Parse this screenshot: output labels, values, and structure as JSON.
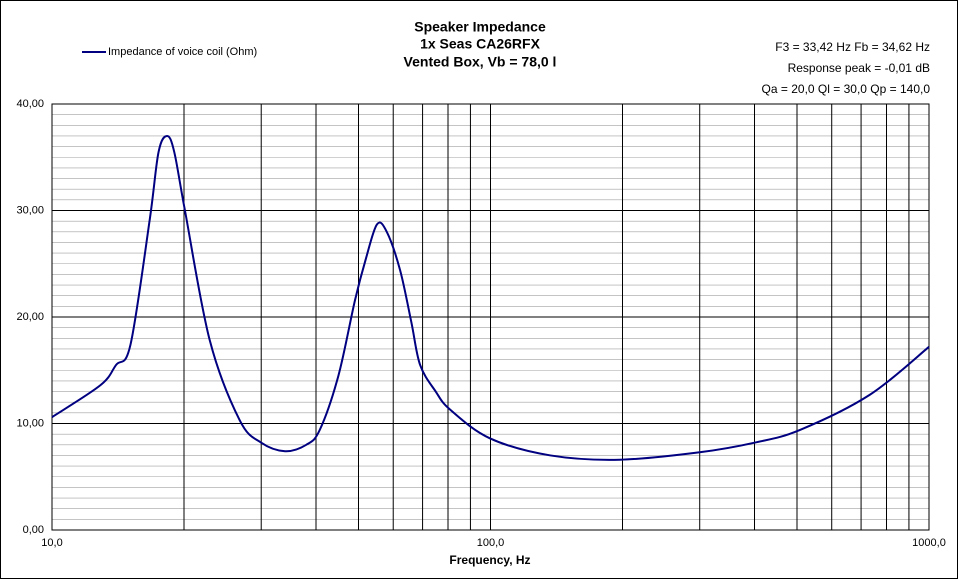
{
  "chart_data": {
    "type": "line",
    "title": [
      "Speaker Impedance",
      "1x Seas CA26RFX",
      "Vented Box, Vb = 78,0 l"
    ],
    "annotations": [
      "F3 = 33,42  Hz   Fb = 34,62  Hz",
      "Response peak = -0,01  dB",
      "Qa = 20,0   Ql = 30,0   Qp = 140,0"
    ],
    "x_label": "Frequency, Hz",
    "x_scale": "log",
    "xlim": [
      10,
      1000
    ],
    "xticks": [
      {
        "value": 10,
        "label": "10,0"
      },
      {
        "value": 100,
        "label": "100,0"
      },
      {
        "value": 1000,
        "label": "1000,0"
      }
    ],
    "x_minor_ticks": [
      20,
      30,
      40,
      50,
      60,
      70,
      80,
      90,
      200,
      300,
      400,
      500,
      600,
      700,
      800,
      900
    ],
    "ylim": [
      0,
      40
    ],
    "yticks": [
      {
        "value": 0,
        "label": "0,00"
      },
      {
        "value": 10,
        "label": "10,00"
      },
      {
        "value": 20,
        "label": "20,00"
      },
      {
        "value": 30,
        "label": "30,00"
      },
      {
        "value": 40,
        "label": "40,00"
      }
    ],
    "y_minor_ticks": [
      1,
      2,
      3,
      4,
      5,
      6,
      7,
      8,
      9,
      11,
      12,
      13,
      14,
      15,
      16,
      17,
      18,
      19,
      21,
      22,
      23,
      24,
      25,
      26,
      27,
      28,
      29,
      31,
      32,
      33,
      34,
      35,
      36,
      37,
      38,
      39
    ],
    "grid": true,
    "legend": "top-left",
    "x": [
      10,
      12.9,
      14,
      15.1,
      16.7,
      17.5,
      18.3,
      19,
      20.1,
      22.9,
      26.8,
      30,
      34,
      38,
      40.8,
      45,
      49.1,
      52,
      55.1,
      58,
      62.2,
      66,
      69.1,
      75,
      80.9,
      99.8,
      137,
      197,
      300,
      400,
      508,
      733,
      1000
    ],
    "series": [
      {
        "name": "Impedance of voice coil (Ohm)",
        "color": "#000080",
        "values": [
          10.6,
          13.6,
          15.5,
          17.4,
          29.1,
          35.5,
          37.0,
          35.5,
          30.0,
          17.8,
          10.3,
          8.2,
          7.4,
          8.0,
          9.4,
          14.5,
          21.6,
          25.5,
          28.7,
          28.0,
          24.4,
          19.5,
          15.5,
          13.0,
          11.3,
          8.6,
          7.0,
          6.6,
          7.3,
          8.2,
          9.4,
          12.7,
          17.2
        ]
      }
    ]
  }
}
